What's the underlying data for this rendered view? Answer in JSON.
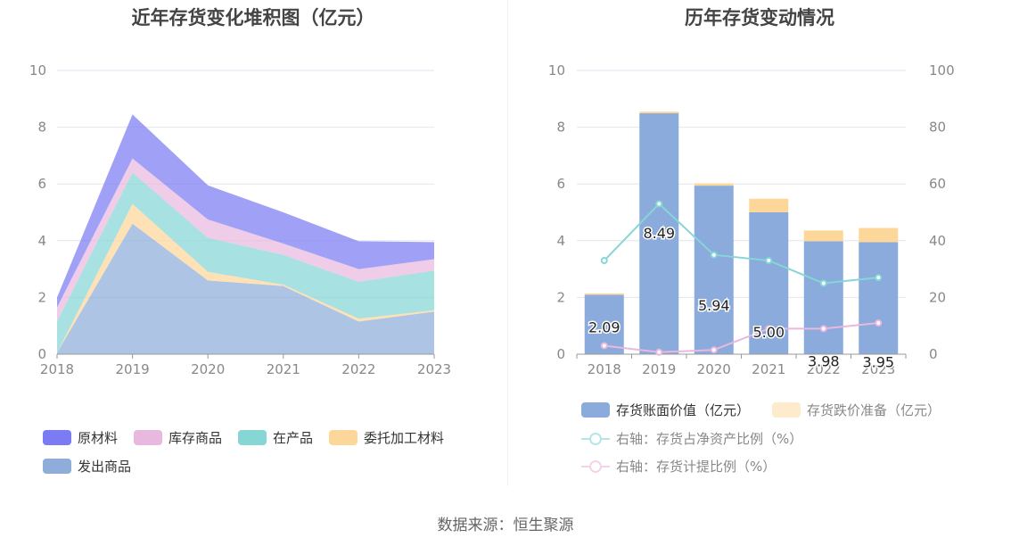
{
  "source_text": "数据来源：恒生聚源",
  "colors": {
    "raw": "#7b7cf3",
    "stock": "#e9b8de",
    "wip": "#86d6d6",
    "consign": "#fdd79a",
    "shipped": "#8eadda",
    "bar_book": "#8aabdb",
    "bar_provision": "#fdd79a",
    "line_ratio": "#86d6d6",
    "line_provision": "#e9b8de",
    "grid": "#e3e6ef",
    "axis": "#999999"
  },
  "chart_data": [
    {
      "type": "area",
      "title": "近年存货变化堆积图（亿元）",
      "x": [
        "2018",
        "2019",
        "2020",
        "2021",
        "2022",
        "2023"
      ],
      "ylim": [
        0,
        10
      ],
      "yticks": [
        0,
        2,
        4,
        6,
        8,
        10
      ],
      "stacked": true,
      "grid": true,
      "legend_position": "bottom",
      "series": [
        {
          "name": "发出商品",
          "key": "shipped",
          "values": [
            0.05,
            4.6,
            2.6,
            2.4,
            1.15,
            1.5
          ]
        },
        {
          "name": "委托加工材料",
          "key": "consign",
          "values": [
            0.0,
            0.7,
            0.3,
            0.05,
            0.1,
            0.05
          ]
        },
        {
          "name": "在产品",
          "key": "wip",
          "values": [
            1.1,
            1.1,
            1.2,
            1.05,
            1.3,
            1.4
          ]
        },
        {
          "name": "库存商品",
          "key": "stock",
          "values": [
            0.5,
            0.5,
            0.65,
            0.4,
            0.45,
            0.4
          ]
        },
        {
          "name": "原材料",
          "key": "raw",
          "values": [
            0.35,
            1.55,
            1.2,
            1.1,
            0.98,
            0.6
          ]
        }
      ],
      "legend": [
        {
          "name": "原材料",
          "key": "raw"
        },
        {
          "name": "库存商品",
          "key": "stock"
        },
        {
          "name": "在产品",
          "key": "wip"
        },
        {
          "name": "委托加工材料",
          "key": "consign"
        },
        {
          "name": "发出商品",
          "key": "shipped"
        }
      ]
    },
    {
      "type": "bar",
      "title": "历年存货变动情况",
      "x": [
        "2018",
        "2019",
        "2020",
        "2021",
        "2022",
        "2023"
      ],
      "ylim_left": [
        0,
        10
      ],
      "yticks_left": [
        0,
        2,
        4,
        6,
        8,
        10
      ],
      "ylim_right": [
        0,
        100
      ],
      "yticks_right": [
        0,
        20,
        40,
        60,
        80,
        100
      ],
      "grid": true,
      "legend_position": "bottom",
      "bars": [
        {
          "name": "存货账面价值（亿元）",
          "key": "bar_book",
          "values": [
            2.09,
            8.49,
            5.94,
            5.0,
            3.98,
            3.95
          ],
          "labels": [
            "2.09",
            "8.49",
            "5.94",
            "5.00",
            "3.98",
            "3.95"
          ]
        },
        {
          "name": "存货跌价准备（亿元）",
          "key": "bar_provision",
          "values": [
            0.05,
            0.06,
            0.08,
            0.48,
            0.38,
            0.5
          ]
        }
      ],
      "lines": [
        {
          "name": "右轴：存货占净资产比例（%）",
          "key": "line_ratio",
          "values": [
            33,
            53,
            35,
            33,
            25,
            27
          ]
        },
        {
          "name": "右轴：存货计提比例（%）",
          "key": "line_provision",
          "values": [
            3,
            0.7,
            1.5,
            9,
            9,
            11
          ]
        }
      ]
    }
  ]
}
